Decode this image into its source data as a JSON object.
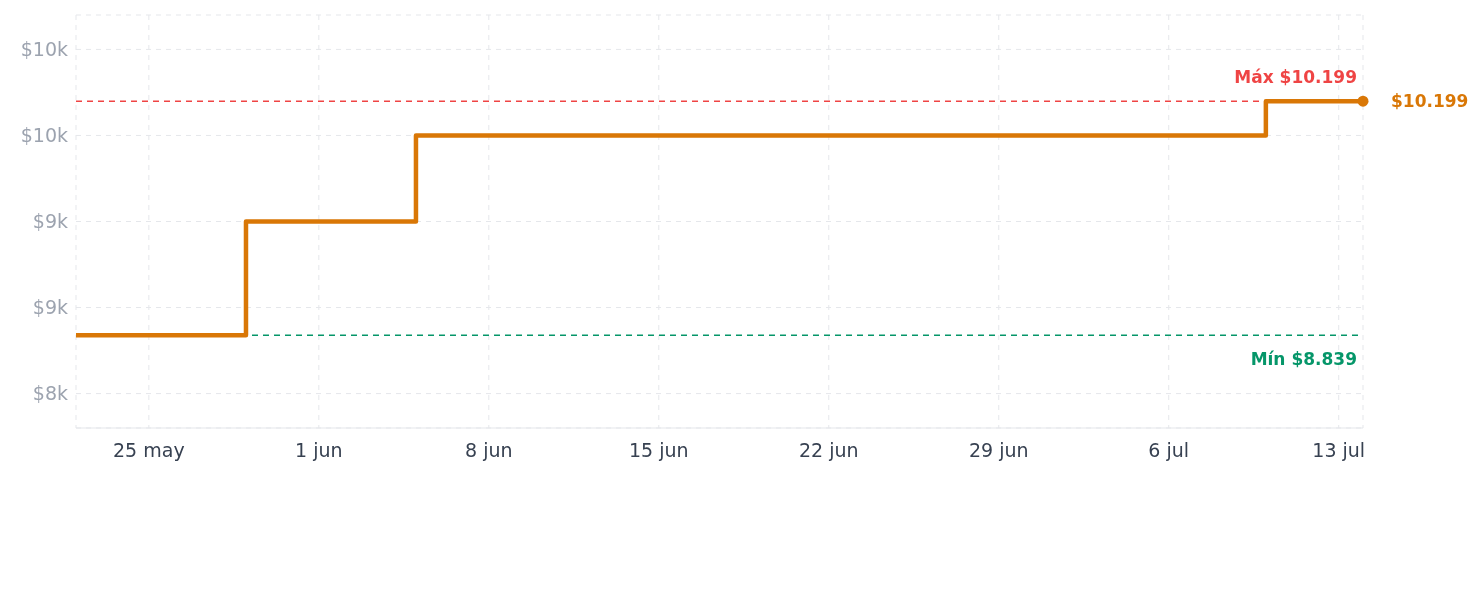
{
  "chart_data": {
    "type": "step",
    "x": [
      "--05-22",
      "--05-29",
      "--06-05",
      "--07-10",
      "--07-14"
    ],
    "series": [
      {
        "color": "#d97706",
        "values": [
          8839,
          9500,
          10000,
          10199,
          10199
        ],
        "value_labels": [
          null,
          null,
          null,
          null,
          "$10.199"
        ]
      }
    ],
    "xlim": [
      "--05-22",
      "--07-14"
    ],
    "xticks": [
      {
        "value": "--05-25",
        "label": "25 may"
      },
      {
        "value": "--06-01",
        "label": "1 jun"
      },
      {
        "value": "--06-08",
        "label": "8 jun"
      },
      {
        "value": "--06-15",
        "label": "15 jun"
      },
      {
        "value": "--06-22",
        "label": "22 jun"
      },
      {
        "value": "--06-29",
        "label": "29 jun"
      },
      {
        "value": "--07-06",
        "label": "6 jul"
      },
      {
        "value": "--07-13",
        "label": "13 jul"
      }
    ],
    "ylim": [
      8300,
      10700
    ],
    "yticks": [
      {
        "value": 8500,
        "label": "$8k"
      },
      {
        "value": 9000,
        "label": "$9k"
      },
      {
        "value": 9500,
        "label": "$9k"
      },
      {
        "value": 10000,
        "label": "$10k"
      },
      {
        "value": 10500,
        "label": "$10k"
      }
    ],
    "ref_lines": [
      {
        "axis": "y",
        "value": 10199,
        "label": "Máx $10.199",
        "color": "#ef4444",
        "line_style": "dashed"
      },
      {
        "axis": "y",
        "value": 8839,
        "label": "Mín $8.839",
        "color": "#059669",
        "line_style": "dashed"
      }
    ],
    "grid": true,
    "legend": false,
    "marker": "none",
    "line_style": "solid"
  }
}
